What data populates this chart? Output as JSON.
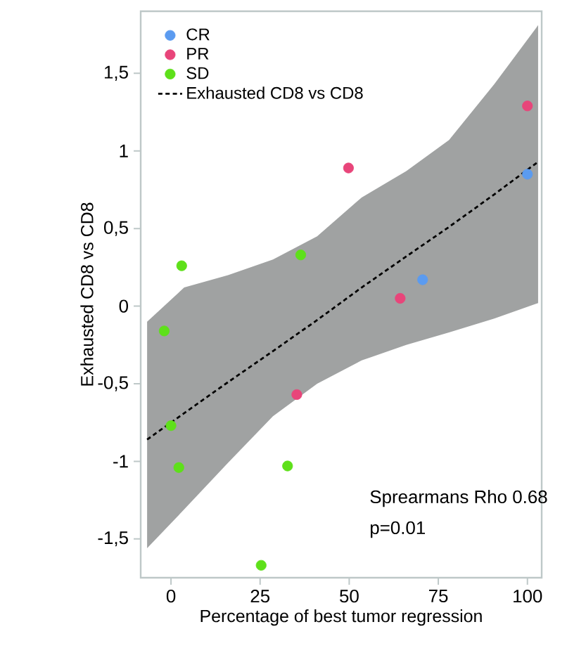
{
  "chart_data": {
    "type": "scatter",
    "xlabel": "Percentage of best tumor regression",
    "ylabel": "Exhausted CD8 vs CD8",
    "xlim": [
      -8.5,
      104
    ],
    "ylim": [
      -1.75,
      1.9
    ],
    "xticks": [
      0,
      25,
      50,
      75,
      100
    ],
    "yticks": [
      {
        "value": -1.5,
        "label": "-1,5"
      },
      -1,
      {
        "value": -0.5,
        "label": "-0,5"
      },
      0,
      {
        "value": 0.5,
        "label": "0,5"
      },
      1,
      {
        "value": 1.5,
        "label": "1,5"
      }
    ],
    "legend": "top left",
    "series": [
      {
        "name": "CR",
        "marker": "circle",
        "color": "#5b9bf0",
        "x": [
          70.6,
          100
        ],
        "values": [
          0.17,
          0.85
        ]
      },
      {
        "name": "PR",
        "marker": "circle",
        "color": "#e8457a",
        "x": [
          100,
          49.8,
          64.3,
          35.3
        ],
        "values": [
          1.29,
          0.89,
          0.05,
          -0.57
        ]
      },
      {
        "name": "SD",
        "marker": "circle",
        "color": "#5ee01a",
        "x": [
          3,
          36.4,
          -1.9,
          0,
          2.2,
          32.7,
          25.3
        ],
        "values": [
          0.26,
          0.33,
          -0.16,
          -0.77,
          -1.04,
          -1.03,
          -1.67
        ]
      },
      {
        "name": "Exhausted CD8 vs CD8",
        "type": "line",
        "line_style": "dashed",
        "marker": "none",
        "color": "#000000",
        "x": [
          -6.7,
          3.7,
          16,
          28.6,
          41,
          53.5,
          66,
          78,
          90.7,
          103
        ],
        "values": [
          -0.86,
          -0.69,
          -0.49,
          -0.29,
          -0.09,
          0.12,
          0.32,
          0.51,
          0.72,
          0.93
        ],
        "lower": [
          -1.56,
          -1.31,
          -1.01,
          -0.71,
          -0.5,
          -0.35,
          -0.25,
          -0.17,
          -0.08,
          0.02
        ],
        "upper": [
          -0.1,
          0.12,
          0.2,
          0.3,
          0.45,
          0.7,
          0.87,
          1.07,
          1.43,
          1.81
        ]
      }
    ],
    "annotations": [
      "Sprearmans Rho 0.68",
      "p=0.01"
    ]
  }
}
